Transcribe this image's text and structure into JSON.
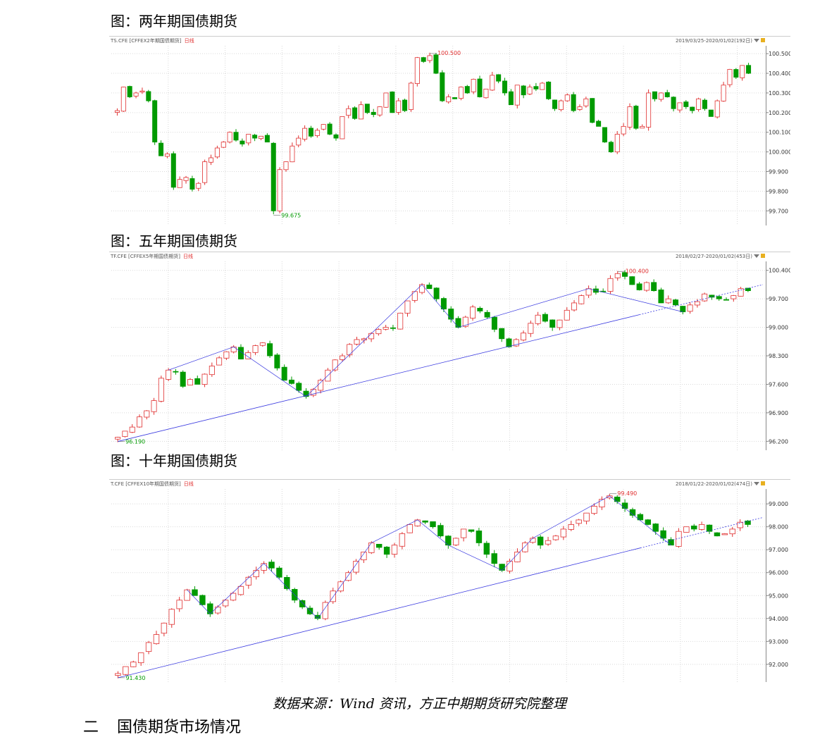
{
  "charts": [
    {
      "title": "图：两年期国债期货",
      "header_left": "TS.CFE [CFFEX2年期国债期货]",
      "header_period": "日线",
      "header_right": "2019/03/25-2020/01/02(192日)",
      "colors": {
        "up": "#e03030",
        "down": "#009a00",
        "grid": "#d9d9d9",
        "axis": "#888888"
      },
      "chart_data": {
        "type": "candlestick",
        "x_range": [
          "2019/03/25",
          "2020/01/02"
        ],
        "bar_count": 192,
        "yticks": [
          100.5,
          100.4,
          100.3,
          100.2,
          100.1,
          100.0,
          99.9,
          99.8,
          99.7
        ],
        "ytick_labels": [
          "100.500",
          "100.400",
          "100.300",
          "100.200",
          "100.100",
          "100.000",
          "99.900",
          "99.800",
          "99.700"
        ],
        "ylim": [
          99.64,
          100.54
        ],
        "max_label": "100.500",
        "min_label": "99.675",
        "trend_lines": false,
        "closes": [
          100.21,
          100.33,
          100.28,
          100.3,
          100.31,
          100.26,
          100.05,
          99.98,
          99.99,
          99.82,
          99.86,
          99.87,
          99.81,
          99.84,
          99.95,
          99.97,
          100.02,
          100.05,
          100.1,
          100.06,
          100.04,
          100.09,
          100.07,
          100.08,
          100.05,
          99.7,
          99.91,
          99.95,
          100.03,
          100.07,
          100.12,
          100.08,
          100.11,
          100.14,
          100.09,
          100.07,
          100.18,
          100.22,
          100.17,
          100.24,
          100.2,
          100.19,
          100.23,
          100.3,
          100.2,
          100.26,
          100.21,
          100.35,
          100.48,
          100.46,
          100.49,
          100.4,
          100.26,
          100.28,
          100.27,
          100.33,
          100.3,
          100.37,
          100.28,
          100.32,
          100.39,
          100.36,
          100.3,
          100.24,
          100.34,
          100.29,
          100.33,
          100.32,
          100.35,
          100.27,
          100.22,
          100.26,
          100.29,
          100.21,
          100.23,
          100.27,
          100.15,
          100.13,
          100.05,
          100.0,
          100.09,
          100.13,
          100.23,
          100.12,
          100.13,
          100.3,
          100.27,
          100.3,
          100.28,
          100.22,
          100.25,
          100.23,
          100.21,
          100.27,
          100.22,
          100.18,
          100.26,
          100.34,
          100.42,
          100.38,
          100.44,
          100.4
        ]
      }
    },
    {
      "title": "图：五年期国债期货",
      "header_left": "TF.CFE [CFFEX5年期国债期货]",
      "header_period": "日线",
      "header_right": "2018/02/27-2020/01/02(453日)",
      "colors": {
        "up": "#e03030",
        "down": "#009a00",
        "grid": "#d9d9d9",
        "axis": "#888888",
        "trend": "#3a3ae0"
      },
      "chart_data": {
        "type": "candlestick",
        "x_range": [
          "2018/02/27",
          "2020/01/02"
        ],
        "bar_count": 453,
        "yticks": [
          100.4,
          99.7,
          99.0,
          98.3,
          97.6,
          96.9,
          96.2
        ],
        "ytick_labels": [
          "100.400",
          "99.700",
          "99.000",
          "98.300",
          "97.600",
          "96.900",
          "96.200"
        ],
        "ylim": [
          96.05,
          100.62
        ],
        "max_label": "100.400",
        "min_label": "96.190",
        "trend_lines": true,
        "closes": [
          96.3,
          96.45,
          96.55,
          96.8,
          96.95,
          97.2,
          97.75,
          97.95,
          97.9,
          97.55,
          97.72,
          97.6,
          97.85,
          98.05,
          98.25,
          98.4,
          98.52,
          98.22,
          98.38,
          98.55,
          98.62,
          98.3,
          98.0,
          97.7,
          97.62,
          97.45,
          97.3,
          97.48,
          97.7,
          97.95,
          98.2,
          98.3,
          98.58,
          98.7,
          98.72,
          98.85,
          98.95,
          99.0,
          98.98,
          99.35,
          99.65,
          99.88,
          100.05,
          99.95,
          99.7,
          99.45,
          99.2,
          99.0,
          99.25,
          99.5,
          99.4,
          99.25,
          98.95,
          98.72,
          98.52,
          98.7,
          98.86,
          99.1,
          99.3,
          99.15,
          99.0,
          99.18,
          99.42,
          99.6,
          99.78,
          99.95,
          99.86,
          99.88,
          100.2,
          100.32,
          100.25,
          100.05,
          99.92,
          100.1,
          99.9,
          99.6,
          99.7,
          99.55,
          99.38,
          99.55,
          99.63,
          99.82,
          99.74,
          99.7,
          99.67,
          99.78,
          99.95,
          99.9
        ]
      }
    },
    {
      "title": "图：十年期国债期货",
      "header_left": "T.CFE [CFFEX10年期国债期货]",
      "header_period": "日线",
      "header_right": "2018/01/22-2020/01/02(474日)",
      "colors": {
        "up": "#e03030",
        "down": "#009a00",
        "grid": "#d9d9d9",
        "axis": "#888888",
        "trend": "#3a3ae0"
      },
      "chart_data": {
        "type": "candlestick",
        "x_range": [
          "2018/01/22",
          "2020/01/02"
        ],
        "bar_count": 474,
        "yticks": [
          99.0,
          98.0,
          97.0,
          96.0,
          95.0,
          94.0,
          93.0,
          92.0
        ],
        "ytick_labels": [
          "99.000",
          "98.000",
          "97.000",
          "96.000",
          "95.000",
          "94.000",
          "93.000",
          "92.000"
        ],
        "ylim": [
          91.35,
          99.65
        ],
        "max_label": "99.490",
        "min_label": "91.430",
        "trend_lines": true,
        "closes": [
          91.6,
          91.9,
          92.1,
          92.5,
          92.95,
          93.3,
          93.8,
          94.4,
          94.8,
          95.25,
          95.0,
          94.6,
          94.2,
          94.5,
          94.8,
          95.1,
          95.4,
          95.8,
          96.1,
          96.4,
          96.2,
          95.8,
          95.3,
          94.8,
          94.5,
          94.2,
          94.0,
          94.7,
          95.2,
          95.6,
          96.0,
          96.5,
          96.9,
          97.3,
          97.1,
          96.8,
          97.2,
          97.7,
          98.1,
          98.3,
          98.2,
          98.0,
          97.6,
          97.2,
          97.5,
          97.9,
          97.8,
          97.3,
          96.8,
          96.4,
          96.1,
          96.5,
          96.9,
          97.3,
          97.5,
          97.2,
          97.4,
          97.6,
          97.9,
          98.1,
          98.3,
          98.6,
          98.9,
          99.2,
          99.35,
          99.1,
          98.8,
          98.5,
          98.3,
          98.1,
          97.8,
          97.5,
          97.2,
          97.8,
          98.0,
          97.9,
          98.1,
          97.8,
          97.6,
          97.7,
          97.9,
          98.2,
          98.1
        ]
      }
    }
  ],
  "source_note": "数据来源：Wind 资讯，方正中期期货研究院整理",
  "bottom_heading": {
    "number": "二",
    "text": "国债期货市场情况"
  }
}
